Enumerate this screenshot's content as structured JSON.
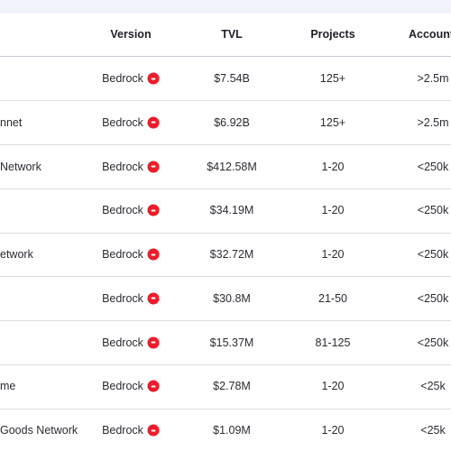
{
  "table": {
    "columns": [
      "Version",
      "TVL",
      "Projects",
      "Account"
    ],
    "rows": [
      {
        "version": "Bedrock",
        "tvl": "$7.54B",
        "projects": "125+",
        "accounts": ">2.5m"
      },
      {
        "name": "nnet",
        "version": "Bedrock",
        "tvl": "$6.92B",
        "projects": "125+",
        "accounts": ">2.5m"
      },
      {
        "name": "Network",
        "version": "Bedrock",
        "tvl": "$412.58M",
        "projects": "1-20",
        "accounts": "<250k"
      },
      {
        "version": "Bedrock",
        "tvl": "$34.19M",
        "projects": "1-20",
        "accounts": "<250k"
      },
      {
        "name": "etwork",
        "version": "Bedrock",
        "tvl": "$32.72M",
        "projects": "1-20",
        "accounts": "<250k"
      },
      {
        "version": "Bedrock",
        "tvl": "$30.8M",
        "projects": "21-50",
        "accounts": "<250k"
      },
      {
        "version": "Bedrock",
        "tvl": "$15.37M",
        "projects": "81-125",
        "accounts": "<250k"
      },
      {
        "name": "me",
        "version": "Bedrock",
        "tvl": "$2.78M",
        "projects": "1-20",
        "accounts": "<25k"
      },
      {
        "name": "Goods Network",
        "version": "Bedrock",
        "tvl": "$1.09M",
        "projects": "1-20",
        "accounts": "<25k"
      }
    ]
  }
}
